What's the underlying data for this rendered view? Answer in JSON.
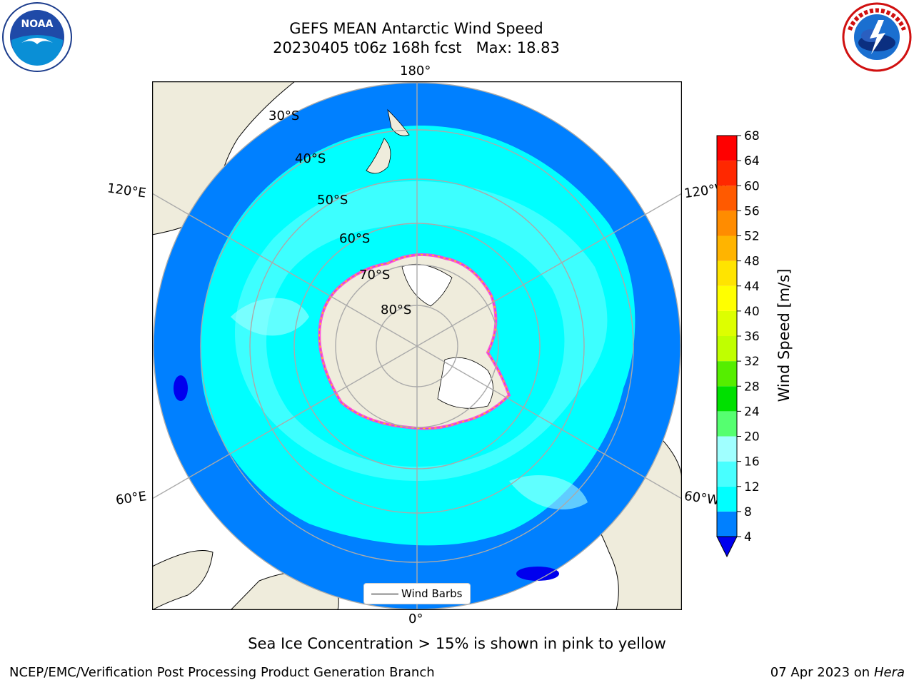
{
  "title": {
    "line1": "GEFS MEAN Antarctic Wind Speed",
    "line2": "20230405 t06z 168h fcst   Max: 18.83"
  },
  "logos": {
    "left": "noaa-logo",
    "right": "nws-logo"
  },
  "map": {
    "longitude_labels": {
      "top": "180°",
      "bottom": "0°",
      "upper_left": "120°E",
      "upper_right": "120°W",
      "lower_left": "60°E",
      "lower_right": "60°W"
    },
    "latitude_labels": [
      "30°S",
      "40°S",
      "50°S",
      "60°S",
      "70°S",
      "80°S"
    ],
    "legend_label": "Wind Barbs",
    "colors": {
      "land": "#efecdc",
      "ice_edge": [
        "#ff44dd",
        "#ffd000"
      ]
    }
  },
  "colorbar": {
    "label": "Wind Speed [m/s]",
    "ticks": [
      "4",
      "8",
      "12",
      "16",
      "20",
      "24",
      "28",
      "32",
      "36",
      "40",
      "44",
      "48",
      "52",
      "56",
      "60",
      "64",
      "68"
    ],
    "colors": [
      "#0000ee",
      "#0080ff",
      "#00ffff",
      "#48ffff",
      "#a0ffff",
      "#55ff70",
      "#00e000",
      "#55ee00",
      "#c0ff00",
      "#ddff00",
      "#ffff00",
      "#ffe400",
      "#ffb400",
      "#ff8c00",
      "#ff5a00",
      "#ff2800",
      "#ff0000"
    ]
  },
  "caption": "Sea Ice Concentration > 15% is shown in pink to yellow",
  "footer": {
    "left": "NCEP/EMC/Verification Post Processing Product Generation Branch",
    "right_prefix": "07 Apr 2023 on ",
    "right_host": "Hera"
  }
}
